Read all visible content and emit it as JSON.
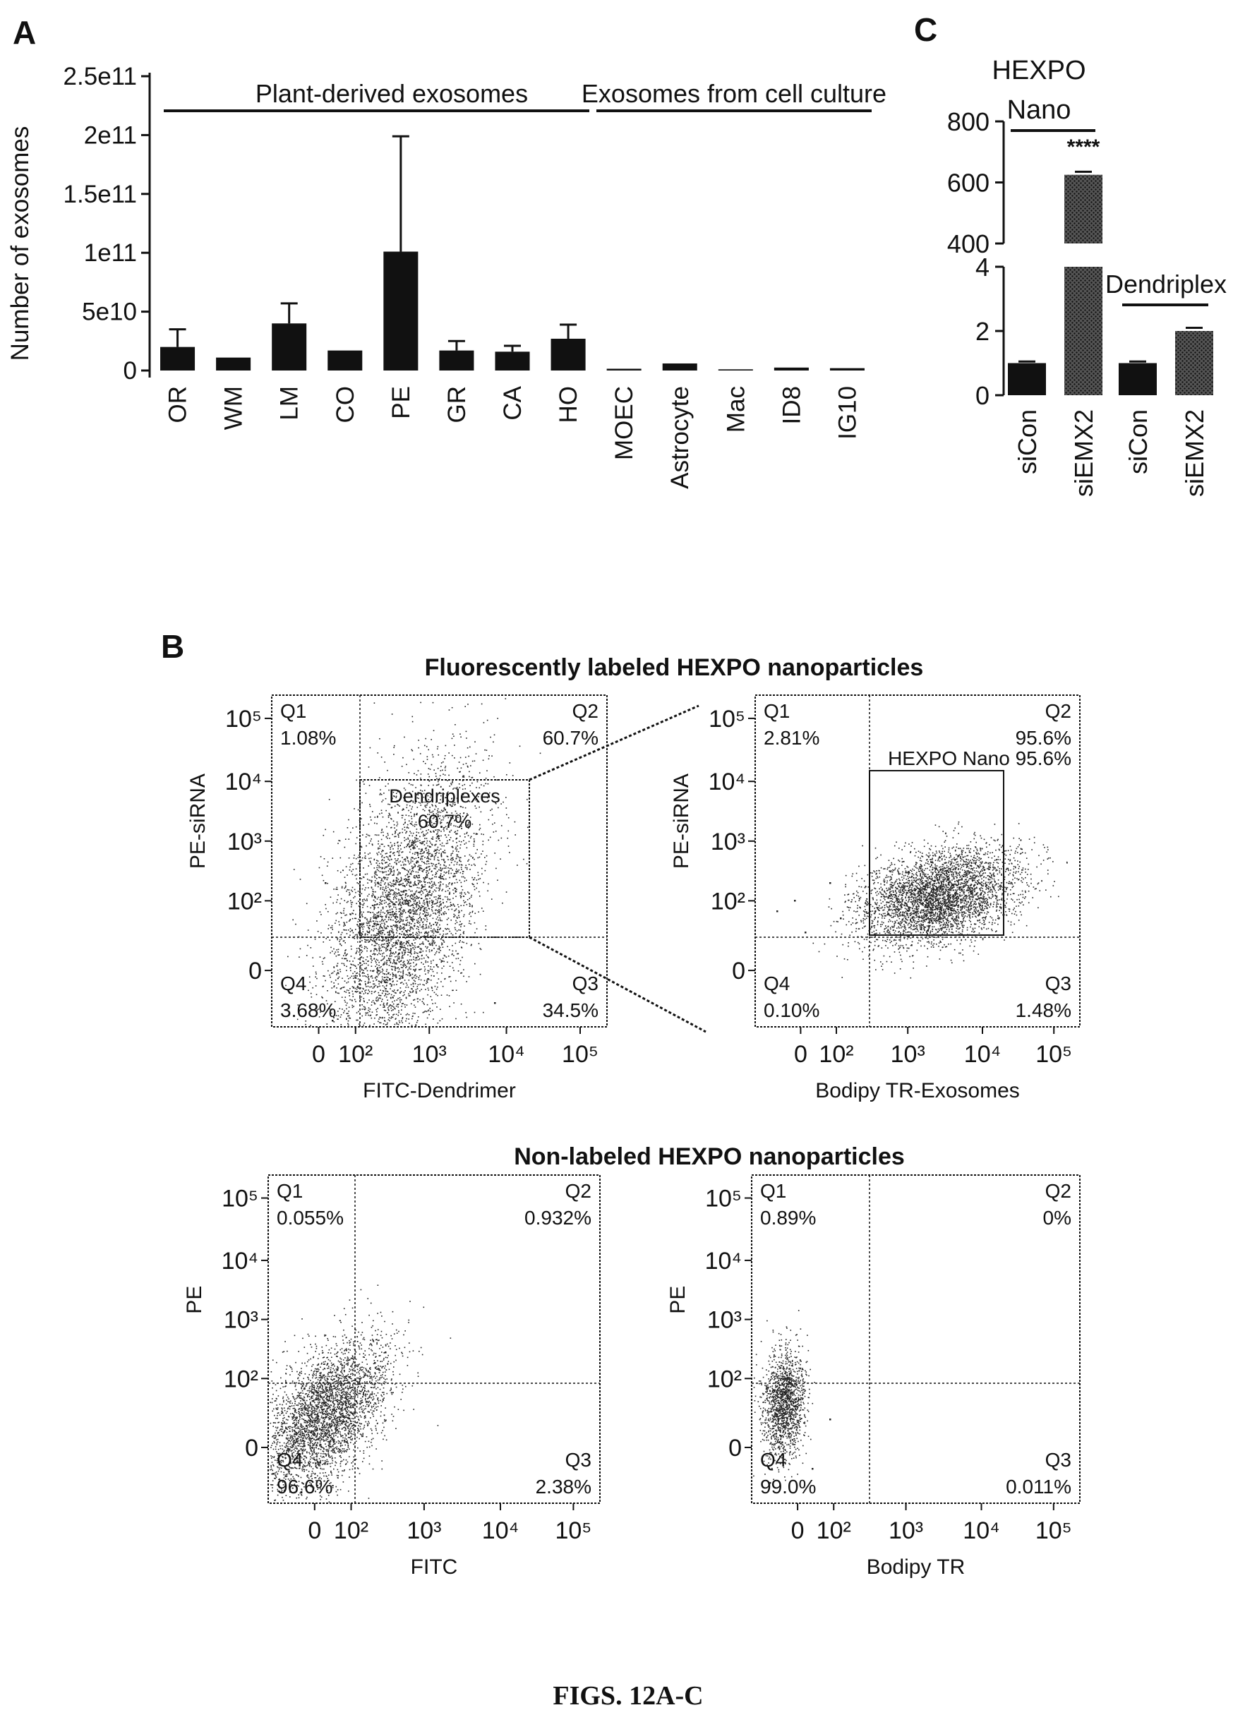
{
  "figure_caption": "FIGS. 12A-C",
  "panels": {
    "a": {
      "letter": "A",
      "group_plant": "Plant-derived exosomes",
      "group_cell": "Exosomes from cell culture"
    },
    "b": {
      "letter": "B",
      "title_labeled": "Fluorescently labeled HEXPO nanoparticles",
      "title_nonlabeled": "Non-labeled HEXPO nanoparticles"
    },
    "c": {
      "letter": "C",
      "hexpo_line1": "HEXPO",
      "hexpo_line2": "Nano",
      "dendriplex": "Dendriplex",
      "significance": "****"
    }
  },
  "colors": {
    "bar_black": "#111111",
    "bar_hatched": "#3a3a3a",
    "dots": "#222222"
  },
  "chart_data": [
    {
      "id": "A",
      "type": "bar",
      "title": "",
      "ylabel": "Number of exosomes",
      "xlabel": "",
      "categories": [
        "OR",
        "WM",
        "LM",
        "CO",
        "PE",
        "GR",
        "CA",
        "HO",
        "MOEC",
        "Astrocyte",
        "Mac",
        "ID8",
        "IG10"
      ],
      "values": [
        20000000000,
        11000000000,
        40000000000,
        17000000000,
        101000000000,
        17000000000,
        16000000000,
        27000000000,
        1500000000,
        6000000000,
        1000000000,
        2500000000,
        2000000000
      ],
      "errors": [
        15000000000,
        0,
        17000000000,
        0,
        98000000000,
        8000000000,
        5000000000,
        12000000000,
        0,
        0,
        0,
        0,
        0
      ],
      "ylim": [
        0,
        250000000000
      ],
      "yticks": [
        0,
        50000000000,
        100000000000,
        150000000000,
        200000000000,
        250000000000
      ],
      "ytick_labels": [
        "0",
        "5e10",
        "1e11",
        "1.5e11",
        "2e11",
        "2.5e11"
      ]
    },
    {
      "id": "C",
      "type": "bar",
      "title": "",
      "ylabel": "",
      "categories": [
        "siCon",
        "siEMX2",
        "siCon",
        "siEMX2"
      ],
      "values": [
        1.0,
        625,
        1.0,
        2.0
      ],
      "errors": [
        0.05,
        10,
        0.05,
        0.1
      ],
      "broken_axis": {
        "lower": [
          0,
          4
        ],
        "upper": [
          400,
          800
        ]
      },
      "ytick_labels_lower": [
        "0",
        "2",
        "4"
      ],
      "ytick_labels_upper": [
        "400",
        "600",
        "800"
      ]
    },
    {
      "id": "B1",
      "type": "scatter",
      "xlabel": "FITC-Dendrimer",
      "ylabel": "PE-siRNA",
      "quadrants": {
        "Q1": "1.08%",
        "Q2": "60.7%",
        "Q3": "34.5%",
        "Q4": "3.68%"
      },
      "gate": {
        "name": "Dendriplexes",
        "value": "60.7%"
      },
      "xtick_labels": [
        "0",
        "10²",
        "10³",
        "10⁴",
        "10⁵"
      ],
      "ytick_labels": [
        "0",
        "10²",
        "10³",
        "10⁴",
        "10⁵"
      ],
      "cloud": {
        "center": [
          800,
          900
        ],
        "direction": "diagonal"
      }
    },
    {
      "id": "B2",
      "type": "scatter",
      "xlabel": "Bodipy TR-Exosomes",
      "ylabel": "PE-siRNA",
      "quadrants": {
        "Q1": "2.81%",
        "Q2": "95.6%",
        "Q3": "1.48%",
        "Q4": "0.10%"
      },
      "gate": {
        "name": "HEXPO Nano",
        "value": "95.6%"
      },
      "xtick_labels": [
        "0",
        "10²",
        "10³",
        "10⁴",
        "10⁵"
      ],
      "ytick_labels": [
        "0",
        "10²",
        "10³",
        "10⁴",
        "10⁵"
      ],
      "cloud": {
        "center": [
          3000,
          350
        ],
        "direction": "horizontal"
      }
    },
    {
      "id": "B3",
      "type": "scatter",
      "xlabel": "FITC",
      "ylabel": "PE",
      "quadrants": {
        "Q1": "0.055%",
        "Q2": "0.932%",
        "Q3": "2.38%",
        "Q4": "96.6%"
      },
      "xtick_labels": [
        "0",
        "10²",
        "10³",
        "10⁴",
        "10⁵"
      ],
      "ytick_labels": [
        "0",
        "10²",
        "10³",
        "10⁴",
        "10⁵"
      ],
      "cloud": {
        "center": [
          60,
          60
        ],
        "direction": "diagonal-low"
      }
    },
    {
      "id": "B4",
      "type": "scatter",
      "xlabel": "Bodipy TR",
      "ylabel": "PE",
      "quadrants": {
        "Q1": "0.89%",
        "Q2": "0%",
        "Q3": "0.011%",
        "Q4": "99.0%"
      },
      "xtick_labels": [
        "0",
        "10²",
        "10³",
        "10⁴",
        "10⁵"
      ],
      "ytick_labels": [
        "0",
        "10²",
        "10³",
        "10⁴",
        "10⁵"
      ],
      "cloud": {
        "center": [
          0,
          60
        ],
        "direction": "vertical-low"
      }
    }
  ]
}
